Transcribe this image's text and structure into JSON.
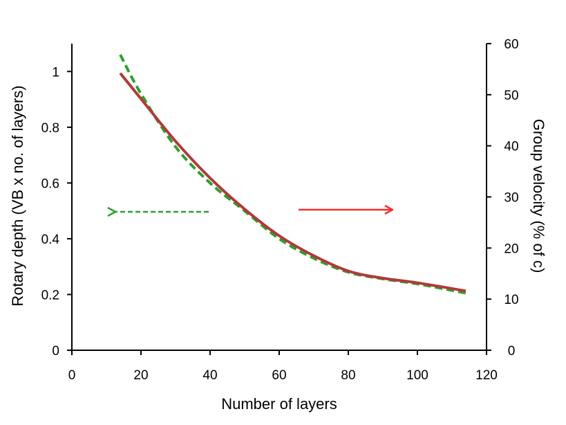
{
  "chart_data": {
    "type": "line",
    "title": "",
    "xlabel": "Number of layers",
    "ylabel": "Rotary depth (VB x no. of layers)",
    "y2label": "Group velocity (% of c)",
    "xlim": [
      0,
      120
    ],
    "ylim": [
      0,
      1.1
    ],
    "y2lim": [
      0,
      60
    ],
    "x_ticks": [
      "0",
      "20",
      "40",
      "60",
      "80",
      "100",
      "120"
    ],
    "y_ticks": [
      "0",
      "0.2",
      "0.4",
      "0.6",
      "0.8",
      "1"
    ],
    "y2_ticks": [
      "0",
      "10",
      "20",
      "30",
      "40",
      "50",
      "60"
    ],
    "grid": false,
    "legend": "none",
    "series": [
      {
        "axis": "left",
        "color": "#2ca02c",
        "style": "dashed",
        "x": [
          14,
          20,
          30,
          40,
          50,
          60,
          70,
          80,
          90,
          100,
          114
        ],
        "y": [
          1.06,
          0.92,
          0.73,
          0.6,
          0.5,
          0.4,
          0.33,
          0.28,
          0.256,
          0.238,
          0.205
        ]
      },
      {
        "axis": "right",
        "color": "#b03a3a",
        "style": "solid",
        "x": [
          14,
          20,
          30,
          40,
          50,
          60,
          70,
          80,
          90,
          100,
          114
        ],
        "y": [
          54.2,
          49.2,
          40.9,
          33.7,
          27.6,
          22.4,
          18.5,
          15.5,
          14.1,
          13.2,
          11.6
        ]
      }
    ],
    "annotations": [
      {
        "type": "arrow",
        "direction": "left",
        "style": "dashed",
        "color": "#2ca02c",
        "meaning": "left-axis"
      },
      {
        "type": "arrow",
        "direction": "right",
        "style": "solid",
        "color": "#ff2a2a",
        "meaning": "right-axis"
      }
    ]
  }
}
